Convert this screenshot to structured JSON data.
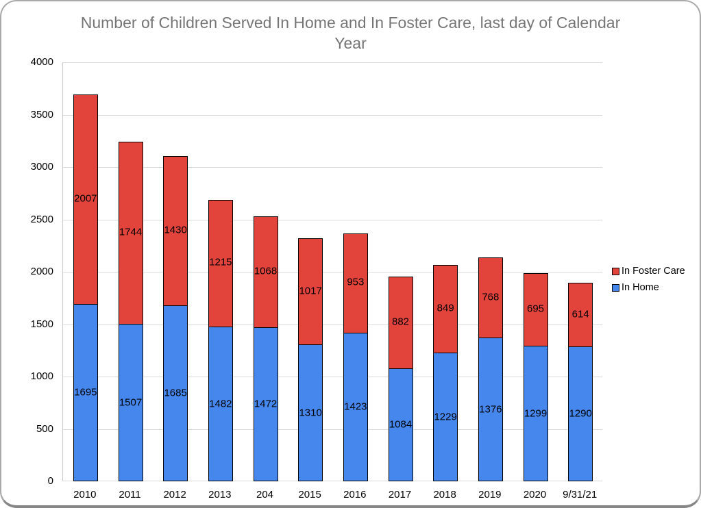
{
  "chart_data": {
    "type": "bar",
    "stacked": true,
    "title": "Number of Children Served In Home and In Foster Care, last day of Calendar Year",
    "categories": [
      "2010",
      "2011",
      "2012",
      "2013",
      "204",
      "2015",
      "2016",
      "2017",
      "2018",
      "2019",
      "2020",
      "9/31/21"
    ],
    "series": [
      {
        "name": "In Home",
        "color": "#4687ee",
        "values": [
          1695,
          1507,
          1685,
          1482,
          1472,
          1310,
          1423,
          1084,
          1229,
          1376,
          1299,
          1290
        ]
      },
      {
        "name": "In Foster Care",
        "color": "#e2443c",
        "values": [
          2007,
          1744,
          1430,
          1215,
          1068,
          1017,
          953,
          882,
          849,
          768,
          695,
          614
        ]
      }
    ],
    "totals": [
      3702,
      3251,
      3115,
      2697,
      2540,
      2327,
      2376,
      1966,
      2078,
      2144,
      1994,
      1904
    ],
    "xlabel": "",
    "ylabel": "",
    "ylim": [
      0,
      4000
    ],
    "yticks": [
      0,
      500,
      1000,
      1500,
      2000,
      2500,
      3000,
      3500,
      4000
    ],
    "grid": true,
    "data_labels": true,
    "legend": {
      "position": "right",
      "entries": [
        {
          "label": "In Foster Care",
          "color": "#e2443c"
        },
        {
          "label": "In Home",
          "color": "#4687ee"
        }
      ]
    },
    "colors": {
      "background": "#ffffff",
      "title_text": "#757575",
      "gridline": "#d9d9d9",
      "axis_line": "#cccccc",
      "label_text": "#000000",
      "bar_border": "#000000",
      "frame_border": "#a9a9a9"
    }
  }
}
